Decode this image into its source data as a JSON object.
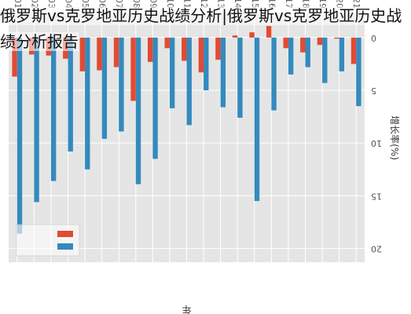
{
  "page": {
    "title": "俄罗斯vs克罗地亚历史战绩分析|俄罗斯vs克罗地亚历史战绩分析报告"
  },
  "colors": {
    "bar_blue": "#348ABD",
    "bar_red": "#E24A33",
    "plot_bg": "#E5E5E5",
    "grid": "#FFFFFF",
    "tick_text": "#555555"
  },
  "chart_data": {
    "type": "bar",
    "orientation": "rotated-180",
    "categories": [
      "2021",
      "2020",
      "2019",
      "2018",
      "2017",
      "2016",
      "2015",
      "2014",
      "2013",
      "2012",
      "2011",
      "2010",
      "2009",
      "2008",
      "2007",
      "2006",
      "2005",
      "2004",
      "2003",
      "2002",
      "2001"
    ],
    "series": [
      {
        "values": [
          6.5,
          3.2,
          4.3,
          2.8,
          3.5,
          6.9,
          15.5,
          7.6,
          6.6,
          5.0,
          8.3,
          6.7,
          11.5,
          13.9,
          8.9,
          9.6,
          12.5,
          10.8,
          13.6,
          15.6,
          18.6
        ]
      },
      {
        "values": [
          2.5,
          0.1,
          0.7,
          1.4,
          1.0,
          -1.1,
          -0.5,
          -0.2,
          2.1,
          3.3,
          2.2,
          1.0,
          2.3,
          6.0,
          2.8,
          3.1,
          3.2,
          2.0,
          1.7,
          1.6,
          3.7
        ]
      }
    ],
    "xlabel": "年",
    "ylabel": "增长率(%)",
    "yticks": [
      "0",
      "5",
      "10",
      "15",
      "20"
    ],
    "ylim": [
      -2.3,
      21.3
    ],
    "grid": true,
    "legend_entries": [
      "",
      ""
    ],
    "legend_position": "top-right"
  }
}
